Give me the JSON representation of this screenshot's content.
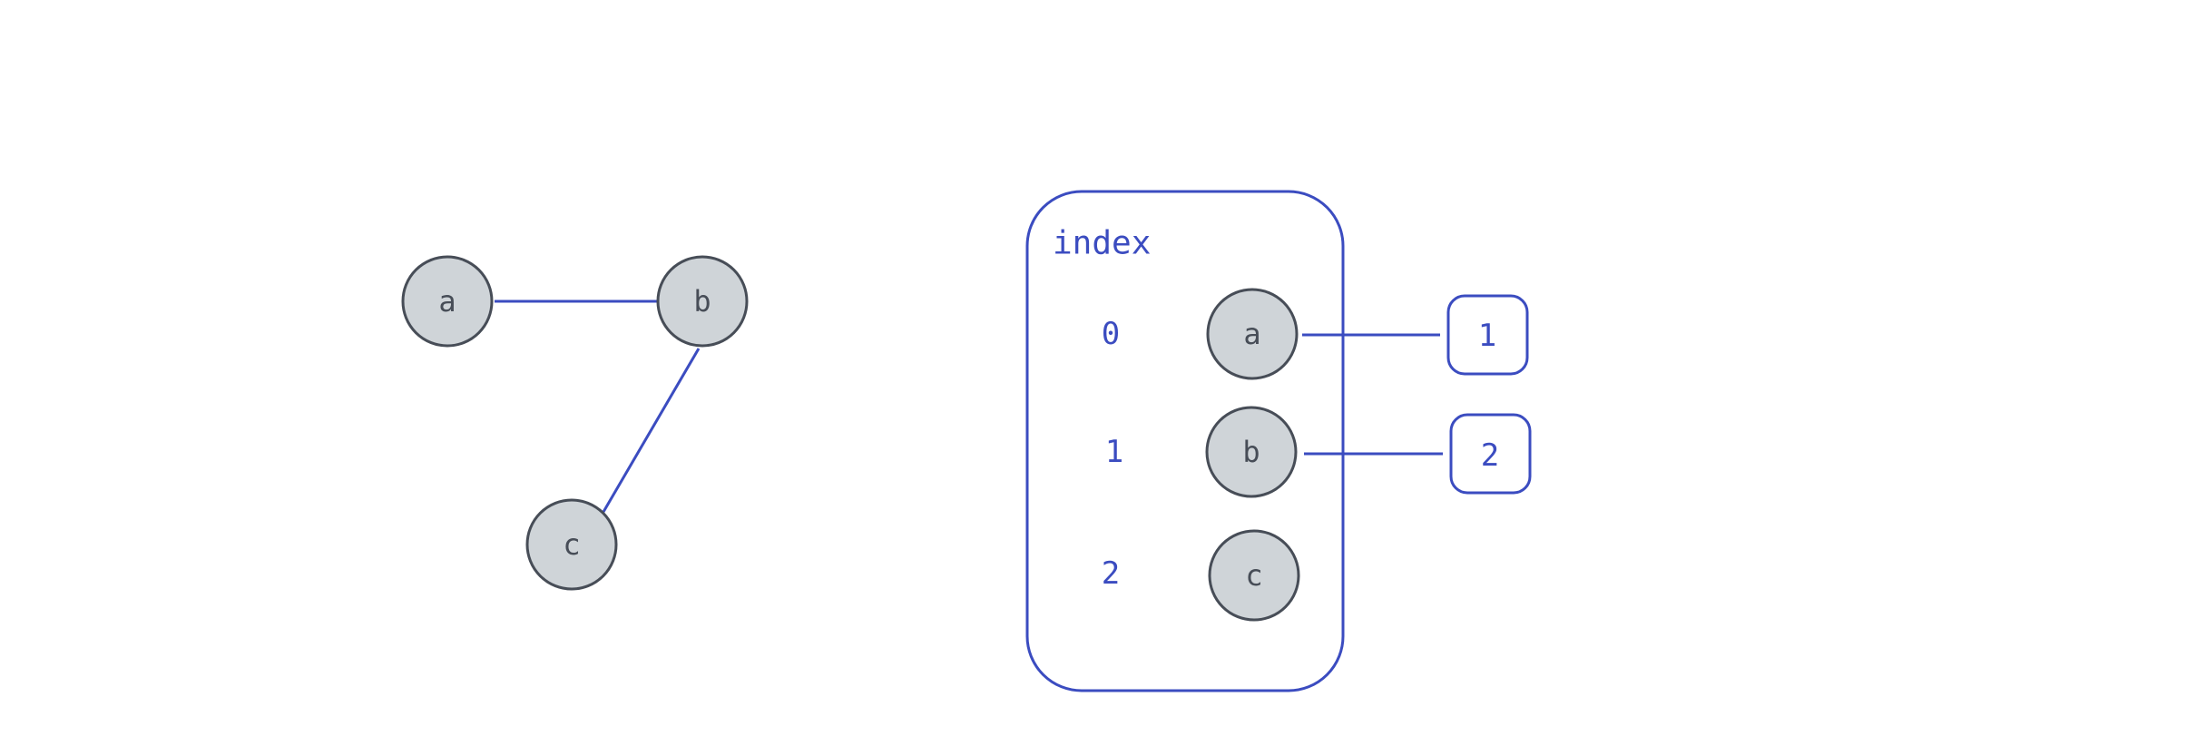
{
  "graph": {
    "nodes": [
      {
        "id": "a",
        "label": "a"
      },
      {
        "id": "b",
        "label": "b"
      },
      {
        "id": "c",
        "label": "c"
      }
    ],
    "edges": [
      {
        "from": "a",
        "to": "b"
      },
      {
        "from": "b",
        "to": "c"
      }
    ]
  },
  "index_table": {
    "title": "index",
    "rows": [
      {
        "index": "0",
        "node": "a",
        "pointer": "1"
      },
      {
        "index": "1",
        "node": "b",
        "pointer": "2"
      },
      {
        "index": "2",
        "node": "c",
        "pointer": ""
      }
    ]
  },
  "colors": {
    "accent": "#3b4cc0",
    "node_fill": "#cfd4d8",
    "node_stroke": "#474d57"
  }
}
